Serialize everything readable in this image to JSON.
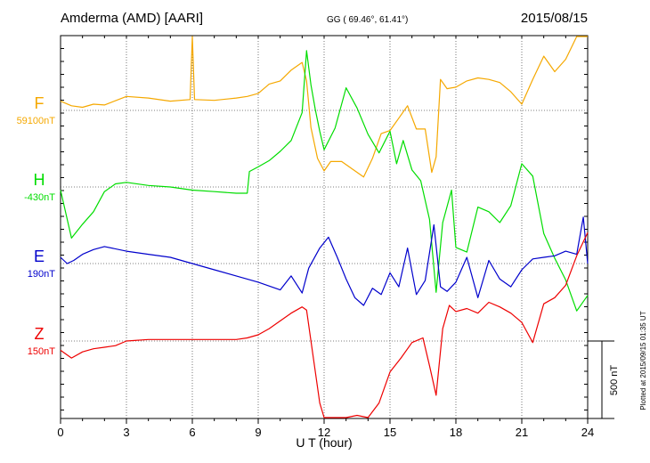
{
  "header": {
    "station": "Amderma (AMD)  [AARI]",
    "coords": "GG ( 69.46°,  61.41°)",
    "date": "2015/08/15"
  },
  "footer": {
    "plotted": "Plotted at 2015/09/15 01:35 UT",
    "scale": "500 nT"
  },
  "chart_data": {
    "type": "line",
    "xlabel": "U T (hour)",
    "xlim": [
      0,
      24
    ],
    "xticks": [
      "0",
      "3",
      "6",
      "9",
      "12",
      "15",
      "18",
      "21",
      "24"
    ],
    "scale_bar_nT": 500,
    "grid": true,
    "series": [
      {
        "name": "F",
        "baseline": "59100nT",
        "color": "#f5a800",
        "x": [
          0,
          0.5,
          1,
          1.5,
          2,
          3,
          4,
          5,
          5.9,
          6.0,
          6.1,
          7,
          8,
          8.5,
          9,
          9.5,
          10,
          10.5,
          11,
          11.2,
          11.4,
          11.7,
          12,
          12.3,
          12.8,
          13.3,
          13.8,
          14.2,
          14.6,
          15,
          15.4,
          15.8,
          16.2,
          16.6,
          16.9,
          17.1,
          17.3,
          17.6,
          18,
          18.5,
          19,
          19.5,
          20,
          20.5,
          21,
          21.5,
          22,
          22.5,
          23,
          23.5,
          24
        ],
        "values": [
          60,
          30,
          20,
          40,
          35,
          90,
          80,
          60,
          70,
          600,
          70,
          65,
          80,
          90,
          110,
          170,
          190,
          260,
          310,
          190,
          -110,
          -310,
          -390,
          -330,
          -330,
          -380,
          -430,
          -310,
          -150,
          -130,
          -50,
          30,
          -120,
          -120,
          -400,
          -300,
          200,
          140,
          150,
          190,
          210,
          200,
          180,
          120,
          40,
          200,
          350,
          250,
          330,
          550,
          580
        ]
      },
      {
        "name": "H",
        "baseline": "-430nT",
        "color": "#00dd00",
        "x": [
          0,
          0.5,
          1,
          1.5,
          2,
          2.5,
          3,
          4,
          5,
          6,
          7,
          8,
          8.5,
          8.6,
          9,
          9.5,
          10,
          10.5,
          11,
          11.2,
          11.4,
          11.6,
          11.8,
          12,
          12.5,
          13,
          13.5,
          14,
          14.5,
          15,
          15.3,
          15.6,
          16,
          16.4,
          16.8,
          17.1,
          17.4,
          17.8,
          18,
          18.5,
          19,
          19.5,
          20,
          20.5,
          21,
          21.5,
          22,
          22.5,
          23,
          23.5,
          24
        ],
        "values": [
          -20,
          -330,
          -240,
          -160,
          -30,
          20,
          30,
          10,
          0,
          -20,
          -30,
          -40,
          -40,
          100,
          130,
          170,
          230,
          300,
          480,
          880,
          660,
          500,
          360,
          240,
          380,
          640,
          510,
          340,
          220,
          360,
          150,
          300,
          110,
          40,
          -210,
          -680,
          -230,
          -20,
          -390,
          -420,
          -130,
          -160,
          -230,
          -120,
          150,
          70,
          -300,
          -460,
          -600,
          -800,
          -700
        ]
      },
      {
        "name": "E",
        "baseline": "190nT",
        "color": "#0000cc",
        "x": [
          0,
          0.3,
          0.6,
          1,
          1.5,
          2,
          3,
          4,
          5,
          6,
          7,
          8,
          9,
          10,
          10.5,
          11,
          11.3,
          11.8,
          12.2,
          12.6,
          13,
          13.4,
          13.8,
          14.2,
          14.6,
          15,
          15.4,
          15.8,
          16.2,
          16.6,
          17,
          17.3,
          17.6,
          18,
          18.5,
          19,
          19.5,
          20,
          20.5,
          21,
          21.5,
          22,
          22.5,
          23,
          23.5,
          23.8,
          24
        ],
        "values": [
          40,
          0,
          20,
          60,
          90,
          110,
          80,
          60,
          40,
          0,
          -40,
          -80,
          -120,
          -170,
          -80,
          -190,
          -30,
          100,
          170,
          40,
          -100,
          -220,
          -270,
          -160,
          -200,
          -60,
          -150,
          100,
          -200,
          -110,
          250,
          -150,
          -180,
          -120,
          40,
          -220,
          20,
          -100,
          -150,
          -40,
          30,
          40,
          50,
          80,
          60,
          300,
          0
        ]
      },
      {
        "name": "Z",
        "baseline": "150nT",
        "color": "#ee0000",
        "x": [
          0,
          0.5,
          1,
          1.5,
          2,
          2.5,
          3,
          4,
          5,
          6,
          7,
          8,
          8.5,
          9,
          9.5,
          10,
          10.5,
          11,
          11.2,
          11.5,
          11.8,
          12,
          12.5,
          13,
          13.5,
          14,
          14.5,
          15,
          15.5,
          16,
          16.5,
          16.8,
          17.1,
          17.4,
          17.7,
          18,
          18.5,
          19,
          19.5,
          20,
          20.5,
          21,
          21.5,
          22,
          22.5,
          23,
          23.5,
          24
        ],
        "values": [
          -60,
          -110,
          -70,
          -50,
          -40,
          -30,
          0,
          10,
          10,
          10,
          10,
          10,
          20,
          40,
          80,
          130,
          180,
          220,
          200,
          -100,
          -400,
          -500,
          -560,
          -530,
          -480,
          -520,
          -400,
          -200,
          -110,
          -10,
          20,
          -160,
          -350,
          80,
          230,
          190,
          210,
          180,
          250,
          220,
          180,
          120,
          -10,
          240,
          280,
          360,
          550,
          700
        ]
      }
    ]
  }
}
